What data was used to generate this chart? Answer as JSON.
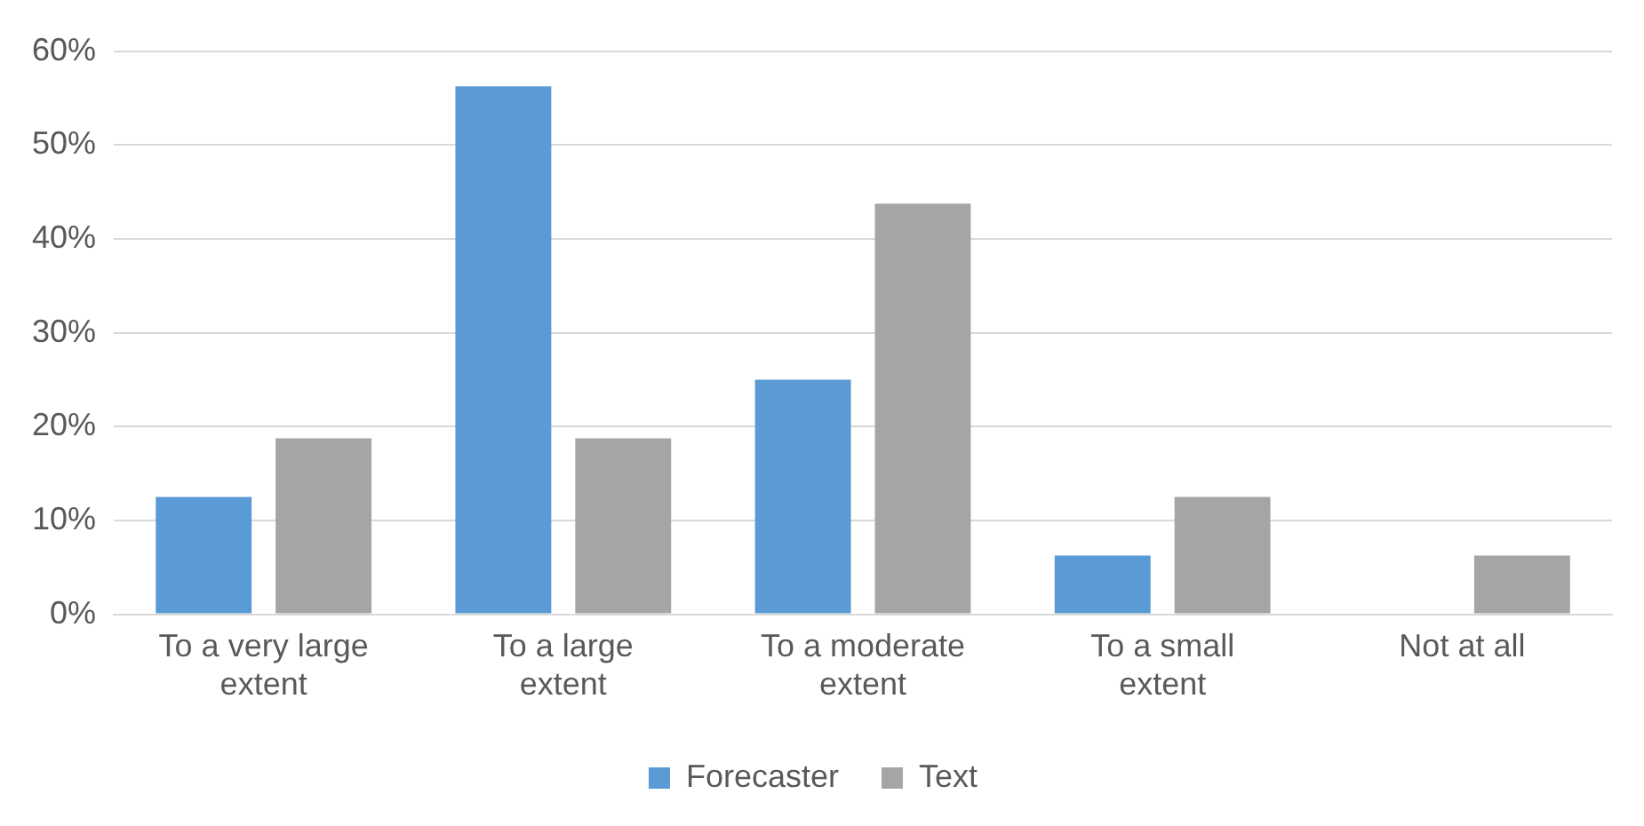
{
  "chart_data": {
    "type": "bar",
    "categories": [
      "To a very large extent",
      "To a large extent",
      "To a moderate extent",
      "To a small extent",
      "Not at all"
    ],
    "series": [
      {
        "name": "Forecaster",
        "color": "#5b9bd5",
        "values": [
          12.5,
          56.25,
          25,
          6.25,
          0
        ]
      },
      {
        "name": "Text",
        "color": "#a5a5a5",
        "values": [
          18.75,
          18.75,
          43.75,
          12.5,
          6.25
        ]
      }
    ],
    "ylim": [
      0,
      60
    ],
    "yticks": [
      {
        "value": 0,
        "label": "0%"
      },
      {
        "value": 10,
        "label": "10%"
      },
      {
        "value": 20,
        "label": "20%"
      },
      {
        "value": 30,
        "label": "30%"
      },
      {
        "value": 40,
        "label": "40%"
      },
      {
        "value": 50,
        "label": "50%"
      },
      {
        "value": 60,
        "label": "60%"
      }
    ],
    "grid": "y",
    "legend": "bottom"
  }
}
